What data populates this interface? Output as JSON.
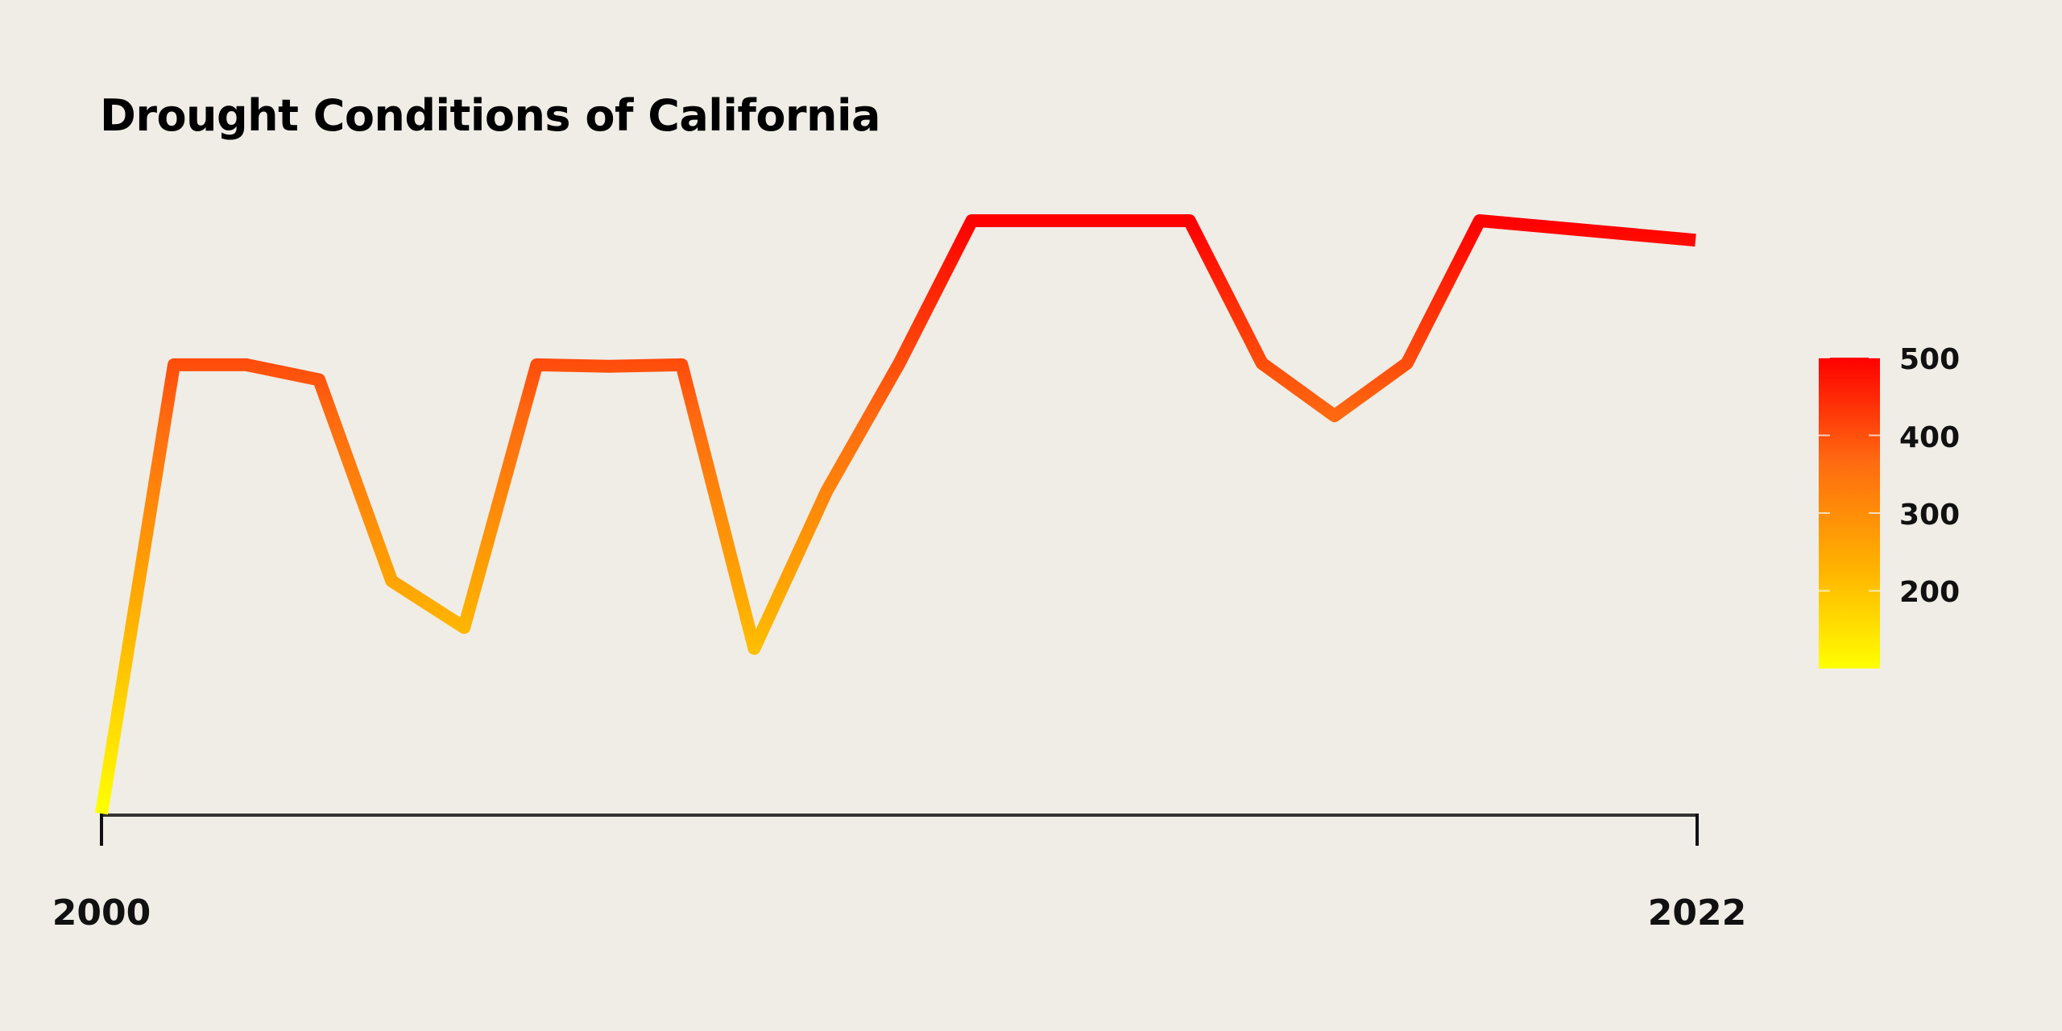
{
  "chart_data": {
    "type": "line",
    "title": "Drought Conditions of California",
    "xlabel": "",
    "ylabel": "",
    "x": [
      2000,
      2001,
      2002,
      2003,
      2004,
      2005,
      2006,
      2007,
      2008,
      2009,
      2010,
      2011,
      2012,
      2013,
      2014,
      2015,
      2016,
      2017,
      2018,
      2019,
      2020,
      2021,
      2022
    ],
    "values": [
      100,
      399,
      399,
      389,
      255,
      224,
      399,
      398,
      399,
      210,
      315,
      400,
      495,
      495,
      495,
      495,
      400,
      365,
      400,
      495,
      482,
      null,
      null
    ],
    "xlim": [
      2000,
      2022
    ],
    "x_ticks": [
      "2000",
      "2022"
    ],
    "ylim": [
      100,
      495
    ],
    "grid": false,
    "colorbar": {
      "ticks": [
        "200",
        "300",
        "400",
        "500"
      ],
      "tick_values": [
        200,
        300,
        400,
        500
      ],
      "range": [
        100,
        500
      ],
      "colors": [
        "#ffff00",
        "#ffb000",
        "#ff6a10",
        "#ff0000"
      ],
      "placement": "right"
    }
  }
}
